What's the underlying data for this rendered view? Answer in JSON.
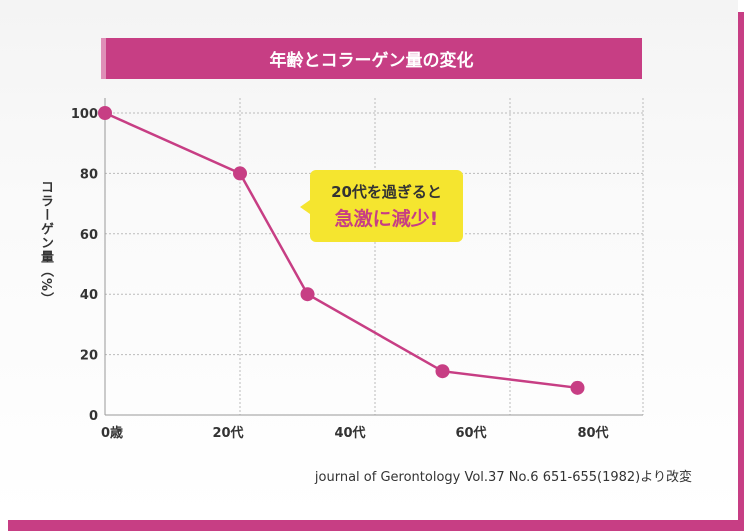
{
  "colors": {
    "accent": "#c73e84",
    "callout": "#f5e52f",
    "grid": "#bbbbbb"
  },
  "chart_data": {
    "type": "line",
    "title": "年齢とコラーゲン量の変化",
    "ylabel": "コラーゲン量（%）",
    "xlabel": "",
    "x_tick_labels": [
      "0歳",
      "20代",
      "40代",
      "60代",
      "80代"
    ],
    "y_ticks": [
      0,
      20,
      40,
      60,
      80,
      100
    ],
    "ylim": [
      0,
      100
    ],
    "xlim": [
      0,
      80
    ],
    "grid": true,
    "series": [
      {
        "x": [
          0,
          20,
          30,
          50,
          70
        ],
        "values": [
          100,
          80,
          40,
          14.5,
          9
        ]
      }
    ],
    "annotation": {
      "line1": "20代を過ぎると",
      "line2": "急激に減少!"
    },
    "source": "journal of Gerontology Vol.37 No.6 651-655(1982)より改変"
  }
}
